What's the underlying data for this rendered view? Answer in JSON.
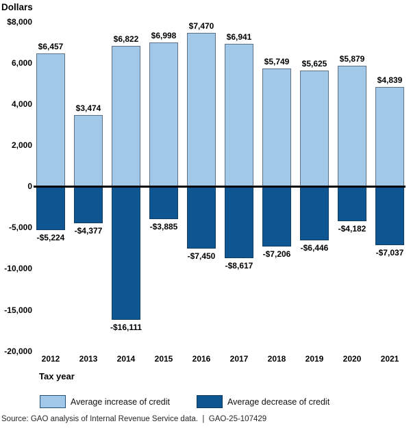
{
  "header": {
    "units_label": "Dollars"
  },
  "chart_data": {
    "type": "bar",
    "title": "Dollars",
    "xlabel": "Tax year",
    "ylabel": "Dollars",
    "grid": false,
    "legend_position": "bottom",
    "axis_note": "positive axis ticks every 2,000 from 0 to 8,000; negative axis ticks every 5,000 from 0 to -20,000 (negative scale compressed)",
    "ylim_positive": [
      0,
      8000
    ],
    "ylim_negative": [
      0,
      -20000
    ],
    "categories": [
      "2012",
      "2013",
      "2014",
      "2015",
      "2016",
      "2017",
      "2018",
      "2019",
      "2020",
      "2021"
    ],
    "series": [
      {
        "name": "Average increase of credit",
        "color": "#a2c8e9",
        "values": [
          6457,
          3474,
          6822,
          6998,
          7470,
          6941,
          5749,
          5625,
          5879,
          4839
        ],
        "labels": [
          "$6,457",
          "$3,474",
          "$6,822",
          "$6,998",
          "$7,470",
          "$6,941",
          "$5,749",
          "$5,625",
          "$5,879",
          "$4,839"
        ]
      },
      {
        "name": "Average decrease of credit",
        "color": "#0d5692",
        "values": [
          -5224,
          -4377,
          -16111,
          -3885,
          -7450,
          -8617,
          -7206,
          -6446,
          -4182,
          -7037
        ],
        "labels": [
          "-$5,224",
          "-$4,377",
          "-$16,111",
          "-$3,885",
          "-$7,450",
          "-$8,617",
          "-$7,206",
          "-$6,446",
          "-$4,182",
          "-$7,037"
        ]
      }
    ],
    "y_ticks": [
      {
        "label": "$8,000",
        "value": 8000
      },
      {
        "label": "6,000",
        "value": 6000
      },
      {
        "label": "4,000",
        "value": 4000
      },
      {
        "label": "2,000",
        "value": 2000
      },
      {
        "label": "0",
        "value": 0
      },
      {
        "label": "-5,000",
        "value": -5000
      },
      {
        "label": "-10,000",
        "value": -10000
      },
      {
        "label": "-15,000",
        "value": -15000
      },
      {
        "label": "-20,000",
        "value": -20000
      }
    ]
  },
  "legend": {
    "increase_label": "Average increase of credit",
    "decrease_label": "Average decrease of credit"
  },
  "footer": {
    "source": "Source: GAO analysis of Internal Revenue Service data.  |  GAO-25-107429"
  }
}
